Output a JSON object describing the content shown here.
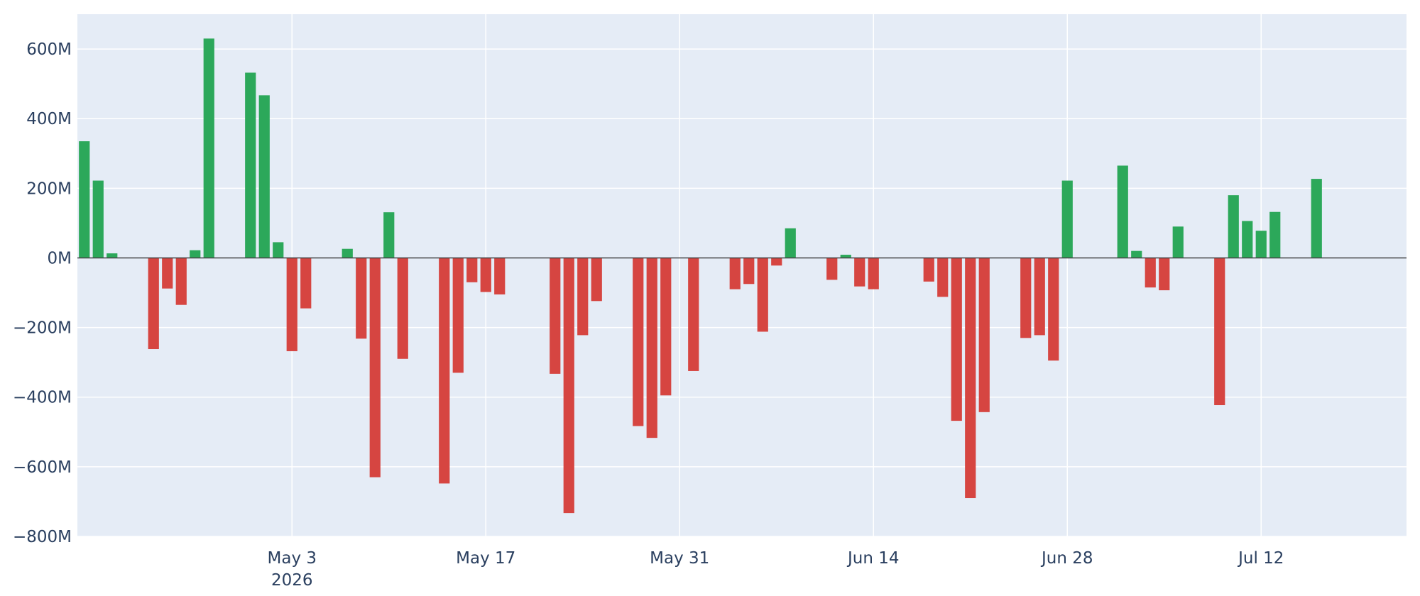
{
  "chart_data": {
    "type": "bar",
    "title": "",
    "xlabel": "",
    "ylabel": "",
    "x_axis": {
      "type": "date",
      "range": [
        "2026-04-18",
        "2026-07-22"
      ],
      "ticks": [
        {
          "date": "2026-05-03",
          "label": "May 3",
          "sublabel": "2026"
        },
        {
          "date": "2026-05-17",
          "label": "May 17",
          "sublabel": ""
        },
        {
          "date": "2026-05-31",
          "label": "May 31",
          "sublabel": ""
        },
        {
          "date": "2026-06-14",
          "label": "Jun 14",
          "sublabel": ""
        },
        {
          "date": "2026-06-28",
          "label": "Jun 28",
          "sublabel": ""
        },
        {
          "date": "2026-07-12",
          "label": "Jul 12",
          "sublabel": ""
        }
      ]
    },
    "y_axis": {
      "range": [
        -800000000,
        700000000
      ],
      "ticks": [
        {
          "value": 600000000,
          "label": "600M"
        },
        {
          "value": 400000000,
          "label": "400M"
        },
        {
          "value": 200000000,
          "label": "200M"
        },
        {
          "value": 0,
          "label": "0M"
        },
        {
          "value": -200000000,
          "label": "−200M"
        },
        {
          "value": -400000000,
          "label": "−400M"
        },
        {
          "value": -600000000,
          "label": "−600M"
        },
        {
          "value": -800000000,
          "label": "−800M"
        }
      ]
    },
    "grid": true,
    "legend": "none",
    "colors": {
      "positive": "#2ca85a",
      "negative": "#d64541",
      "plot_bg": "#e5ecf6",
      "grid": "#ffffff",
      "zero_line": "#444444",
      "text": "#2a3f5f"
    },
    "series": [
      {
        "values": [
          {
            "x": "2026-04-18",
            "y": 335000000
          },
          {
            "x": "2026-04-19",
            "y": 222000000
          },
          {
            "x": "2026-04-20",
            "y": 13000000
          },
          {
            "x": "2026-04-23",
            "y": -262000000
          },
          {
            "x": "2026-04-24",
            "y": -88000000
          },
          {
            "x": "2026-04-25",
            "y": -135000000
          },
          {
            "x": "2026-04-26",
            "y": 22000000
          },
          {
            "x": "2026-04-27",
            "y": 630000000
          },
          {
            "x": "2026-04-30",
            "y": 532000000
          },
          {
            "x": "2026-05-01",
            "y": 467000000
          },
          {
            "x": "2026-05-02",
            "y": 45000000
          },
          {
            "x": "2026-05-03",
            "y": -268000000
          },
          {
            "x": "2026-05-04",
            "y": -145000000
          },
          {
            "x": "2026-05-07",
            "y": 26000000
          },
          {
            "x": "2026-05-08",
            "y": -232000000
          },
          {
            "x": "2026-05-09",
            "y": -630000000
          },
          {
            "x": "2026-05-10",
            "y": 131000000
          },
          {
            "x": "2026-05-11",
            "y": -290000000
          },
          {
            "x": "2026-05-14",
            "y": -648000000
          },
          {
            "x": "2026-05-15",
            "y": -330000000
          },
          {
            "x": "2026-05-16",
            "y": -70000000
          },
          {
            "x": "2026-05-17",
            "y": -98000000
          },
          {
            "x": "2026-05-18",
            "y": -105000000
          },
          {
            "x": "2026-05-22",
            "y": -333000000
          },
          {
            "x": "2026-05-23",
            "y": -733000000
          },
          {
            "x": "2026-05-24",
            "y": -222000000
          },
          {
            "x": "2026-05-25",
            "y": -124000000
          },
          {
            "x": "2026-05-28",
            "y": -483000000
          },
          {
            "x": "2026-05-29",
            "y": -517000000
          },
          {
            "x": "2026-05-30",
            "y": -395000000
          },
          {
            "x": "2026-06-01",
            "y": -325000000
          },
          {
            "x": "2026-06-04",
            "y": -90000000
          },
          {
            "x": "2026-06-05",
            "y": -75000000
          },
          {
            "x": "2026-06-06",
            "y": -212000000
          },
          {
            "x": "2026-06-07",
            "y": -22000000
          },
          {
            "x": "2026-06-08",
            "y": 85000000
          },
          {
            "x": "2026-06-11",
            "y": -63000000
          },
          {
            "x": "2026-06-12",
            "y": 9000000
          },
          {
            "x": "2026-06-13",
            "y": -82000000
          },
          {
            "x": "2026-06-14",
            "y": -90000000
          },
          {
            "x": "2026-06-18",
            "y": -68000000
          },
          {
            "x": "2026-06-19",
            "y": -112000000
          },
          {
            "x": "2026-06-20",
            "y": -468000000
          },
          {
            "x": "2026-06-21",
            "y": -690000000
          },
          {
            "x": "2026-06-22",
            "y": -443000000
          },
          {
            "x": "2026-06-25",
            "y": -230000000
          },
          {
            "x": "2026-06-26",
            "y": -222000000
          },
          {
            "x": "2026-06-27",
            "y": -295000000
          },
          {
            "x": "2026-06-28",
            "y": 222000000
          },
          {
            "x": "2026-07-02",
            "y": 265000000
          },
          {
            "x": "2026-07-03",
            "y": 20000000
          },
          {
            "x": "2026-07-04",
            "y": -85000000
          },
          {
            "x": "2026-07-05",
            "y": -93000000
          },
          {
            "x": "2026-07-06",
            "y": 90000000
          },
          {
            "x": "2026-07-09",
            "y": -423000000
          },
          {
            "x": "2026-07-10",
            "y": 180000000
          },
          {
            "x": "2026-07-11",
            "y": 106000000
          },
          {
            "x": "2026-07-12",
            "y": 78000000
          },
          {
            "x": "2026-07-13",
            "y": 132000000
          },
          {
            "x": "2026-07-16",
            "y": 227000000
          }
        ]
      }
    ]
  }
}
